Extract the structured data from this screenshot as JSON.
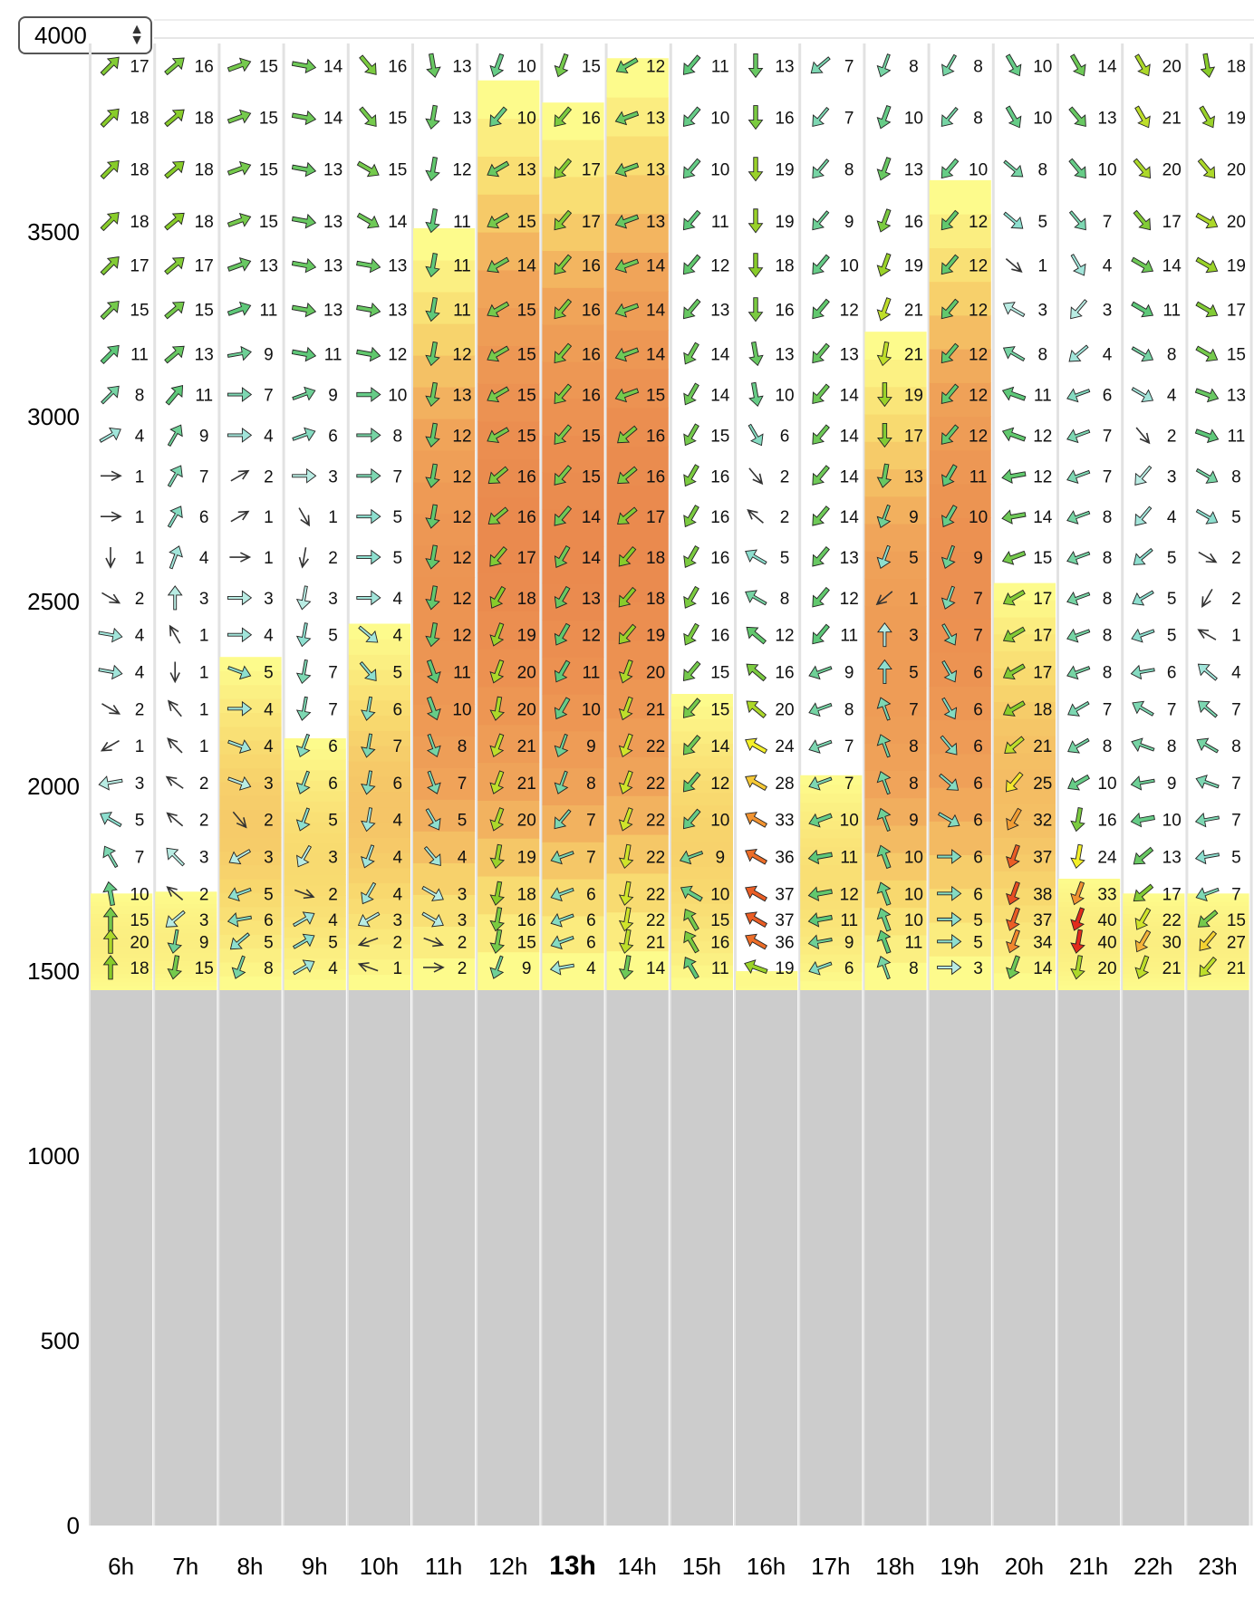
{
  "controls": {
    "altitude_value": "4000"
  },
  "chart_data": {
    "type": "heatmap",
    "title": "",
    "xlabel": "",
    "ylabel": "",
    "ylim": [
      0,
      4000
    ],
    "y_ticks": [
      0,
      500,
      1000,
      1500,
      2000,
      2500,
      3000,
      3500
    ],
    "x": [
      "6h",
      "7h",
      "8h",
      "9h",
      "10h",
      "11h",
      "12h",
      "13h",
      "14h",
      "15h",
      "16h",
      "17h",
      "18h",
      "19h",
      "20h",
      "21h",
      "22h",
      "23h"
    ],
    "current_hour": "13h",
    "terrain_altitude": 1450,
    "thermal_top": [
      1710,
      1715,
      2350,
      2130,
      2440,
      3510,
      3910,
      3850,
      3970,
      2250,
      1500,
      2030,
      3230,
      3640,
      2550,
      1750,
      1710,
      1710
    ],
    "wind_levels": [
      3950,
      3810,
      3670,
      3530,
      3410,
      3290,
      3170,
      3060,
      2950,
      2840,
      2730,
      2620,
      2510,
      2410,
      2310,
      2210,
      2110,
      2010,
      1910,
      1810,
      1710,
      1640,
      1580,
      1510
    ],
    "wind_speed": [
      [
        17,
        18,
        18,
        18,
        17,
        15,
        11,
        8,
        4,
        1,
        1,
        1,
        2,
        4,
        4,
        2,
        1,
        3,
        5,
        7,
        10,
        15,
        20,
        18
      ],
      [
        16,
        18,
        18,
        18,
        17,
        15,
        13,
        11,
        9,
        7,
        6,
        4,
        3,
        1,
        1,
        1,
        1,
        2,
        2,
        3,
        2,
        3,
        9,
        15
      ],
      [
        15,
        15,
        15,
        15,
        13,
        11,
        9,
        7,
        4,
        2,
        1,
        1,
        3,
        4,
        5,
        4,
        4,
        3,
        2,
        3,
        5,
        6,
        5,
        8
      ],
      [
        14,
        14,
        13,
        13,
        13,
        13,
        11,
        9,
        6,
        3,
        1,
        2,
        3,
        5,
        7,
        7,
        6,
        6,
        5,
        3,
        2,
        4,
        5,
        4
      ],
      [
        16,
        15,
        15,
        14,
        13,
        13,
        12,
        10,
        8,
        7,
        5,
        5,
        4,
        4,
        5,
        6,
        7,
        6,
        4,
        4,
        4,
        3,
        2,
        1
      ],
      [
        13,
        13,
        12,
        11,
        11,
        11,
        12,
        13,
        12,
        12,
        12,
        12,
        12,
        12,
        11,
        10,
        8,
        7,
        5,
        4,
        3,
        3,
        2,
        2
      ],
      [
        10,
        10,
        13,
        15,
        14,
        15,
        15,
        15,
        15,
        16,
        16,
        17,
        18,
        19,
        20,
        20,
        21,
        21,
        20,
        19,
        18,
        16,
        15,
        9
      ],
      [
        15,
        16,
        17,
        17,
        16,
        16,
        16,
        16,
        15,
        15,
        14,
        14,
        13,
        12,
        11,
        10,
        9,
        8,
        7,
        7,
        6,
        6,
        6,
        4
      ],
      [
        12,
        13,
        13,
        13,
        14,
        14,
        14,
        15,
        16,
        16,
        17,
        18,
        18,
        19,
        20,
        21,
        22,
        22,
        22,
        22,
        22,
        22,
        21,
        14
      ],
      [
        11,
        10,
        10,
        11,
        12,
        13,
        14,
        14,
        15,
        16,
        16,
        16,
        16,
        16,
        15,
        15,
        14,
        12,
        10,
        9,
        10,
        15,
        16,
        11
      ],
      [
        13,
        16,
        19,
        19,
        18,
        16,
        13,
        10,
        6,
        2,
        2,
        5,
        8,
        12,
        16,
        20,
        24,
        28,
        33,
        36,
        37,
        37,
        36,
        19
      ],
      [
        7,
        7,
        8,
        9,
        10,
        12,
        13,
        14,
        14,
        14,
        14,
        13,
        12,
        11,
        9,
        8,
        7,
        7,
        10,
        11,
        12,
        11,
        9,
        6
      ],
      [
        8,
        10,
        13,
        16,
        19,
        21,
        21,
        19,
        17,
        13,
        9,
        5,
        1,
        3,
        5,
        7,
        8,
        8,
        9,
        10,
        10,
        10,
        11,
        8
      ],
      [
        8,
        8,
        10,
        12,
        12,
        12,
        12,
        12,
        12,
        11,
        10,
        9,
        7,
        7,
        6,
        6,
        6,
        6,
        6,
        6,
        6,
        5,
        5,
        3
      ],
      [
        10,
        10,
        8,
        5,
        1,
        3,
        8,
        11,
        12,
        12,
        14,
        15,
        17,
        17,
        17,
        18,
        21,
        25,
        32,
        37,
        38,
        37,
        34,
        14
      ],
      [
        14,
        13,
        10,
        7,
        4,
        3,
        4,
        6,
        7,
        7,
        8,
        8,
        8,
        8,
        8,
        7,
        8,
        10,
        16,
        24,
        33,
        40,
        40,
        20
      ],
      [
        20,
        21,
        20,
        17,
        14,
        11,
        8,
        4,
        2,
        3,
        4,
        5,
        5,
        5,
        6,
        7,
        8,
        9,
        10,
        13,
        17,
        22,
        30,
        21
      ],
      [
        18,
        19,
        20,
        20,
        19,
        17,
        15,
        13,
        11,
        8,
        5,
        2,
        2,
        1,
        4,
        7,
        8,
        7,
        7,
        5,
        7,
        15,
        27,
        21
      ]
    ],
    "wind_dir": [
      [
        225,
        225,
        225,
        225,
        225,
        225,
        225,
        225,
        240,
        270,
        270,
        0,
        300,
        280,
        280,
        300,
        60,
        80,
        120,
        150,
        170,
        180,
        180,
        180
      ],
      [
        230,
        230,
        230,
        230,
        230,
        230,
        230,
        220,
        210,
        210,
        210,
        200,
        180,
        150,
        0,
        140,
        135,
        125,
        130,
        135,
        130,
        50,
        10,
        10
      ],
      [
        250,
        250,
        250,
        250,
        250,
        250,
        260,
        270,
        270,
        240,
        240,
        270,
        270,
        270,
        290,
        270,
        290,
        290,
        320,
        60,
        70,
        80,
        50,
        20
      ],
      [
        280,
        280,
        280,
        280,
        280,
        280,
        280,
        250,
        250,
        270,
        330,
        10,
        10,
        10,
        10,
        10,
        20,
        20,
        20,
        30,
        290,
        240,
        240,
        240
      ],
      [
        320,
        320,
        300,
        300,
        280,
        280,
        280,
        270,
        270,
        270,
        270,
        270,
        270,
        310,
        320,
        10,
        10,
        10,
        10,
        20,
        30,
        60,
        70,
        110
      ],
      [
        350,
        10,
        10,
        10,
        10,
        10,
        10,
        10,
        10,
        10,
        10,
        10,
        10,
        10,
        340,
        340,
        340,
        340,
        330,
        320,
        300,
        300,
        290,
        270
      ],
      [
        20,
        40,
        60,
        60,
        60,
        60,
        60,
        60,
        60,
        50,
        50,
        40,
        30,
        20,
        20,
        10,
        20,
        20,
        20,
        10,
        10,
        10,
        10,
        20
      ],
      [
        20,
        40,
        40,
        40,
        40,
        40,
        40,
        40,
        40,
        40,
        40,
        30,
        30,
        30,
        30,
        30,
        20,
        20,
        40,
        70,
        70,
        70,
        70,
        80
      ],
      [
        60,
        70,
        70,
        70,
        70,
        70,
        70,
        70,
        50,
        50,
        50,
        40,
        40,
        40,
        20,
        20,
        20,
        20,
        20,
        10,
        10,
        10,
        10,
        10
      ],
      [
        40,
        40,
        40,
        40,
        40,
        40,
        30,
        30,
        30,
        30,
        30,
        30,
        30,
        30,
        40,
        40,
        40,
        40,
        40,
        70,
        120,
        150,
        150,
        150
      ],
      [
        0,
        0,
        0,
        0,
        0,
        0,
        350,
        350,
        330,
        320,
        130,
        120,
        120,
        130,
        130,
        130,
        120,
        120,
        120,
        120,
        120,
        120,
        120,
        110
      ],
      [
        50,
        40,
        40,
        40,
        40,
        40,
        40,
        40,
        40,
        40,
        40,
        40,
        40,
        40,
        70,
        70,
        70,
        70,
        70,
        80,
        80,
        80,
        80,
        70
      ],
      [
        20,
        20,
        20,
        20,
        20,
        20,
        10,
        0,
        0,
        10,
        20,
        20,
        50,
        180,
        180,
        160,
        160,
        160,
        160,
        160,
        160,
        160,
        160,
        160
      ],
      [
        30,
        40,
        40,
        40,
        40,
        40,
        40,
        40,
        40,
        30,
        30,
        20,
        20,
        330,
        330,
        330,
        320,
        310,
        300,
        270,
        270,
        270,
        270,
        270
      ],
      [
        330,
        330,
        310,
        310,
        310,
        120,
        120,
        110,
        110,
        80,
        80,
        70,
        60,
        60,
        60,
        60,
        50,
        40,
        30,
        20,
        20,
        20,
        20,
        20
      ],
      [
        330,
        320,
        320,
        320,
        330,
        40,
        50,
        70,
        70,
        70,
        70,
        70,
        70,
        70,
        70,
        60,
        60,
        60,
        10,
        10,
        20,
        20,
        10,
        10
      ],
      [
        330,
        330,
        320,
        320,
        300,
        300,
        300,
        300,
        320,
        40,
        40,
        50,
        60,
        70,
        80,
        120,
        110,
        80,
        80,
        50,
        50,
        30,
        30,
        20
      ],
      [
        350,
        330,
        320,
        300,
        300,
        300,
        300,
        290,
        290,
        300,
        300,
        300,
        30,
        120,
        130,
        130,
        120,
        110,
        80,
        80,
        70,
        50,
        40,
        40
      ]
    ]
  }
}
